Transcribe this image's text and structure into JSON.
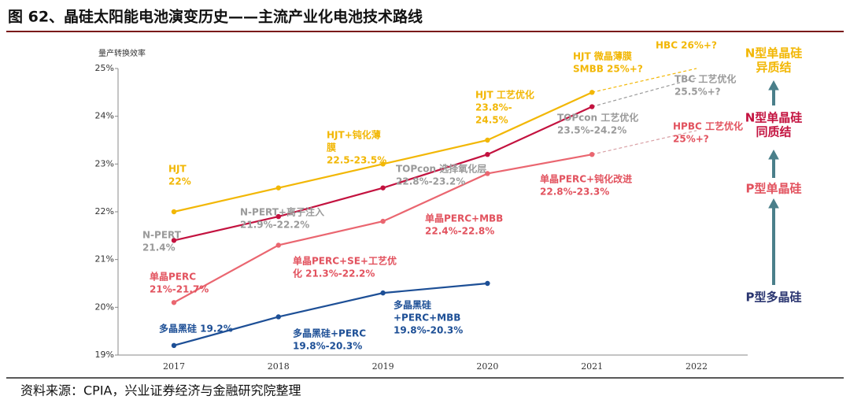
{
  "chart_data": {
    "type": "line",
    "title": "图 62、晶硅太阳能电池演变历史——主流产业化电池技术路线",
    "y_label": "量产转换效率",
    "source": "资料来源：CPIA，兴业证券经济与金融研究院整理",
    "categories": [
      "2017",
      "2018",
      "2019",
      "2020",
      "2021",
      "2022"
    ],
    "ylim": [
      19,
      25
    ],
    "yticks": [
      {
        "value": 19,
        "label": "19%"
      },
      {
        "value": 20,
        "label": "20%"
      },
      {
        "value": 21,
        "label": "21%"
      },
      {
        "value": 22,
        "label": "22%"
      },
      {
        "value": 23,
        "label": "23%"
      },
      {
        "value": 24,
        "label": "24%"
      },
      {
        "value": 25,
        "label": "25%"
      }
    ],
    "grid": false,
    "series": [
      {
        "color": "#f2b705",
        "dash_color": "#f2b705",
        "dashed_segments": 1,
        "values": [
          22.0,
          22.5,
          23.0,
          23.5,
          24.5,
          25.0
        ]
      },
      {
        "color": "#c3123f",
        "dash_color": "#9a9a9a",
        "dashed_segments": 1,
        "values": [
          21.4,
          21.9,
          22.5,
          23.2,
          24.2,
          24.8
        ]
      },
      {
        "color": "#ea6670",
        "dash_color": "#d9a0a5",
        "dashed_segments": 1,
        "values": [
          20.1,
          21.3,
          21.8,
          22.8,
          23.2,
          23.7
        ]
      },
      {
        "color": "#1d4f96",
        "dash_color": "#1d4f96",
        "dashed_segments": 0,
        "values": [
          19.2,
          19.8,
          20.3,
          20.5,
          null,
          null
        ]
      }
    ],
    "annotations": [
      {
        "color": "#f2b705",
        "lines": [
          "HJT",
          "22%"
        ]
      },
      {
        "color": "#f2b705",
        "lines": [
          "HJT+钝化薄",
          "膜",
          "22.5-23.5%"
        ]
      },
      {
        "color": "#f2b705",
        "lines": [
          "HJT 工艺优化",
          "23.8%-",
          "24.5%"
        ]
      },
      {
        "color": "#f2b705",
        "lines": [
          "HJT 微晶薄膜",
          "SMBB 25%+?"
        ]
      },
      {
        "color": "#f2b705",
        "lines": [
          "HBC 26%+?"
        ]
      },
      {
        "color": "#9a9a9a",
        "lines": [
          "N-PERT",
          "21.4%"
        ]
      },
      {
        "color": "#9a9a9a",
        "lines": [
          "N-PERT+离子注入",
          "21.9%-22.2%"
        ]
      },
      {
        "color": "#9a9a9a",
        "lines": [
          "TOPcon 选择氧化层",
          "22.8%-23.2%"
        ]
      },
      {
        "color": "#9a9a9a",
        "lines": [
          "TOPcon 工艺优化",
          "23.5%-24.2%"
        ]
      },
      {
        "color": "#9a9a9a",
        "lines": [
          "TBC 工艺优化",
          "25.5%+?"
        ]
      },
      {
        "color": "#e2525e",
        "lines": [
          "单晶PERC",
          "21%-21.7%"
        ]
      },
      {
        "color": "#e2525e",
        "lines": [
          "单晶PERC+SE+工艺优",
          "化 21.3%-22.2%"
        ]
      },
      {
        "color": "#e2525e",
        "lines": [
          "单晶PERC+MBB",
          "22.4%-22.8%"
        ]
      },
      {
        "color": "#e2525e",
        "lines": [
          "单晶PERC+钝化改进",
          "22.8%-23.3%"
        ]
      },
      {
        "color": "#e2525e",
        "lines": [
          "HPBC 工艺优化",
          "25%+?"
        ]
      },
      {
        "color": "#1d4f96",
        "lines": [
          "多晶黑硅 19.2%"
        ]
      },
      {
        "color": "#1d4f96",
        "lines": [
          "多晶黑硅+PERC",
          "19.8%-20.3%"
        ]
      },
      {
        "color": "#1d4f96",
        "lines": [
          "多晶黑硅",
          "+PERC+MBB",
          "19.8%-20.3%"
        ]
      }
    ],
    "right_labels": [
      {
        "color": "#f2b705",
        "lines": [
          "N型单晶硅",
          "异质结"
        ]
      },
      {
        "color": "#c3123f",
        "lines": [
          "N型单晶硅",
          "同质结"
        ]
      },
      {
        "color": "#e2525e",
        "lines": [
          "P型单晶硅"
        ]
      },
      {
        "color": "#2a3570",
        "lines": [
          "P型多晶硅"
        ]
      }
    ]
  }
}
